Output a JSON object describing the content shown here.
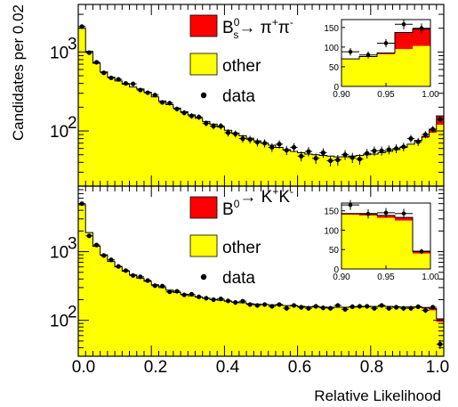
{
  "chart_data": {
    "type": "bar",
    "shared": {
      "xlabel": "Relative Likelihood",
      "ylabel": "Candidates per 0.02",
      "xlim": [
        0,
        1
      ],
      "x_ticks": [
        "0.0",
        "0.2",
        "0.4",
        "0.6",
        "0.8",
        "1.0"
      ],
      "y_ticks": [
        {
          "label": "10",
          "exp": "2",
          "value": 100
        },
        {
          "label": "10",
          "exp": "3",
          "value": 1000
        }
      ],
      "bin_width": 0.02,
      "bin_centers": [
        0.01,
        0.03,
        0.05,
        0.07,
        0.09,
        0.11,
        0.13,
        0.15,
        0.17,
        0.19,
        0.21,
        0.23,
        0.25,
        0.27,
        0.29,
        0.31,
        0.33,
        0.35,
        0.37,
        0.39,
        0.41,
        0.43,
        0.45,
        0.47,
        0.49,
        0.51,
        0.53,
        0.55,
        0.57,
        0.59,
        0.61,
        0.63,
        0.65,
        0.67,
        0.69,
        0.71,
        0.73,
        0.75,
        0.77,
        0.79,
        0.81,
        0.83,
        0.85,
        0.87,
        0.89,
        0.91,
        0.93,
        0.95,
        0.97,
        0.99
      ],
      "colors": {
        "signal": "#ff0000",
        "other": "#ffff00",
        "data": "#000000"
      }
    },
    "panels": [
      {
        "name": "top",
        "scale": "log",
        "ylim": [
          20,
          4000
        ],
        "legend": {
          "signal": {
            "main": "B",
            "sup": "0",
            "sub": "s",
            "arrow": "→ π",
            "sup2": "+",
            "mid": "π",
            "sup3": "-"
          },
          "other": "other",
          "data": "data"
        },
        "other": [
          2000,
          1020,
          720,
          560,
          480,
          430,
          390,
          360,
          340,
          310,
          270,
          240,
          215,
          195,
          175,
          160,
          145,
          132,
          122,
          112,
          102,
          94,
          87,
          81,
          75,
          70,
          66,
          62,
          58,
          55,
          53,
          51,
          50,
          49,
          48,
          47,
          47,
          48,
          49,
          50,
          51,
          53,
          55,
          58,
          62,
          68,
          75,
          82,
          95,
          120
        ],
        "signal": [
          0,
          0,
          0,
          0,
          0,
          0,
          0,
          0,
          0,
          0,
          0,
          0,
          0,
          0,
          0,
          0,
          0,
          0,
          0,
          0,
          0,
          0,
          0,
          0,
          0,
          0,
          0,
          0,
          0,
          0,
          0,
          0,
          0,
          0,
          0,
          0,
          0,
          0,
          0,
          0,
          0,
          0,
          0,
          0,
          0,
          0,
          1,
          3,
          10,
          35
        ],
        "data": [
          2100,
          980,
          740,
          545,
          470,
          450,
          400,
          395,
          330,
          305,
          285,
          230,
          225,
          190,
          170,
          155,
          150,
          125,
          115,
          115,
          95,
          92,
          80,
          78,
          72,
          70,
          62,
          68,
          57,
          62,
          48,
          55,
          45,
          53,
          42,
          43,
          50,
          46,
          44,
          52,
          56,
          56,
          58,
          60,
          63,
          80,
          73,
          90,
          105,
          140
        ],
        "inset": {
          "xlim": [
            0.9,
            1.0
          ],
          "ylim": [
            0,
            170
          ],
          "x_ticks": [
            "0.90",
            "0.95",
            "1.00"
          ],
          "y_ticks": [
            "0",
            "50",
            "100",
            "150"
          ],
          "bins": [
            0.91,
            0.93,
            0.95,
            0.97,
            0.99
          ],
          "other": [
            70,
            75,
            82,
            95,
            103
          ],
          "signal": [
            0,
            1,
            3,
            42,
            43
          ],
          "data": [
            88,
            80,
            110,
            158,
            148
          ]
        }
      },
      {
        "name": "bottom",
        "scale": "log",
        "ylim": [
          30,
          9000
        ],
        "legend": {
          "signal": {
            "main": "B",
            "sup": "0",
            "sub": "",
            "arrow": "→ K",
            "sup2": "+",
            "mid": "K",
            "sup3": "-"
          },
          "other": "other",
          "data": "data"
        },
        "other": [
          4800,
          1900,
          1200,
          900,
          720,
          600,
          520,
          460,
          410,
          370,
          330,
          300,
          275,
          255,
          240,
          228,
          218,
          210,
          202,
          196,
          190,
          185,
          180,
          175,
          172,
          170,
          168,
          166,
          164,
          162,
          160,
          158,
          157,
          156,
          155,
          155,
          155,
          156,
          157,
          158,
          159,
          160,
          160,
          158,
          156,
          154,
          152,
          148,
          140,
          95
        ],
        "signal": [
          0,
          0,
          0,
          0,
          0,
          0,
          0,
          0,
          0,
          0,
          0,
          0,
          0,
          0,
          0,
          0,
          0,
          0,
          0,
          0,
          0,
          0,
          0,
          0,
          0,
          0,
          0,
          0,
          0,
          0,
          0,
          0,
          0,
          0,
          0,
          0,
          0,
          0,
          0,
          0,
          0,
          0,
          0,
          0,
          0,
          3,
          5,
          6,
          8,
          10
        ],
        "data": [
          5000,
          1700,
          1250,
          880,
          760,
          610,
          530,
          450,
          430,
          380,
          320,
          315,
          260,
          265,
          235,
          240,
          220,
          210,
          200,
          205,
          192,
          182,
          190,
          170,
          165,
          170,
          160,
          170,
          150,
          165,
          155,
          150,
          160,
          152,
          150,
          165,
          145,
          158,
          160,
          160,
          150,
          165,
          150,
          155,
          150,
          150,
          158,
          140,
          155,
          45
        ],
        "inset": {
          "xlim": [
            0.9,
            1.0
          ],
          "ylim": [
            0,
            170
          ],
          "x_ticks": [
            "0.90",
            "0.95",
            "1.00"
          ],
          "y_ticks": [
            "0",
            "50",
            "100",
            "150"
          ],
          "bins": [
            0.91,
            0.93,
            0.95,
            0.97,
            0.99
          ],
          "other": [
            140,
            138,
            132,
            125,
            40
          ],
          "signal": [
            3,
            5,
            6,
            8,
            6
          ],
          "data": [
            165,
            142,
            145,
            143,
            45
          ]
        }
      }
    ]
  }
}
